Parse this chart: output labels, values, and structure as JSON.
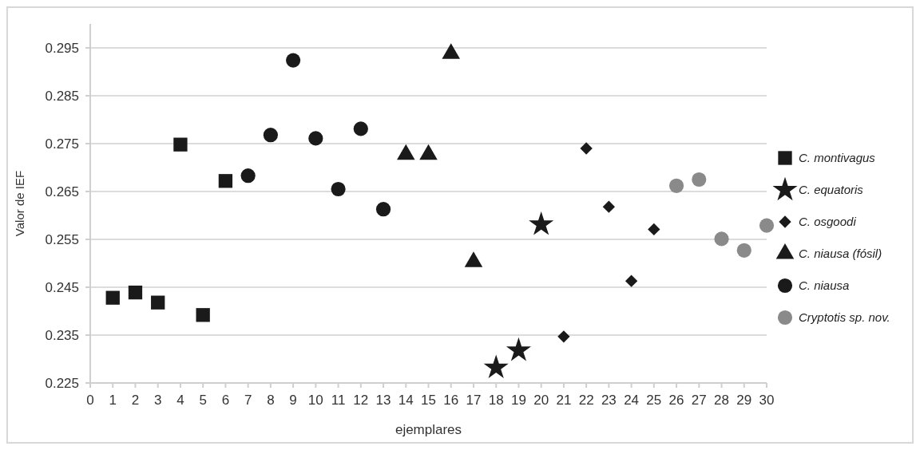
{
  "chart_data": {
    "type": "scatter",
    "xlabel": "ejemplares",
    "ylabel": "Valor de IEF",
    "xlim": [
      0,
      30
    ],
    "xticks": [
      0,
      1,
      2,
      3,
      4,
      5,
      6,
      7,
      8,
      9,
      10,
      11,
      12,
      13,
      14,
      15,
      16,
      17,
      18,
      19,
      20,
      21,
      22,
      23,
      24,
      25,
      26,
      27,
      28,
      29,
      30
    ],
    "ylim": [
      0.225,
      0.3
    ],
    "yticks": [
      0.225,
      0.235,
      0.245,
      0.255,
      0.265,
      0.275,
      0.285,
      0.295
    ],
    "grid": "y",
    "legend": "right",
    "series": [
      {
        "name": "C. montivagus",
        "color": "#1a1a1a",
        "marker": "square",
        "x": [
          1,
          2,
          3,
          4,
          5,
          6
        ],
        "values": [
          0.2428,
          0.2439,
          0.2418,
          0.2748,
          0.2392,
          0.2672
        ]
      },
      {
        "name": "C. equatoris",
        "color": "#1a1a1a",
        "marker": "star",
        "x": [
          18,
          19,
          20
        ],
        "values": [
          0.2282,
          0.2318,
          0.2581
        ]
      },
      {
        "name": "C. osgoodi",
        "color": "#1a1a1a",
        "marker": "diamond",
        "x": [
          21,
          22,
          23,
          24,
          25
        ],
        "values": [
          0.2347,
          0.274,
          0.2618,
          0.2463,
          0.2571
        ]
      },
      {
        "name": "C. niausa (fósil)",
        "color": "#1a1a1a",
        "marker": "triangle",
        "x": [
          14,
          15,
          16,
          17
        ],
        "values": [
          0.2727,
          0.2727,
          0.2938,
          0.2503
        ]
      },
      {
        "name": "C. niausa",
        "color": "#1a1a1a",
        "marker": "circle",
        "x": [
          7,
          8,
          9,
          10,
          11,
          12,
          13
        ],
        "values": [
          0.2683,
          0.2768,
          0.2924,
          0.2761,
          0.2655,
          0.2781,
          0.2613
        ]
      },
      {
        "name": "Cryptotis sp. nov.",
        "color": "#8a8a8a",
        "marker": "circle",
        "x": [
          26,
          27,
          28,
          29,
          30
        ],
        "values": [
          0.2662,
          0.2675,
          0.2551,
          0.2527,
          0.2579
        ]
      }
    ]
  }
}
